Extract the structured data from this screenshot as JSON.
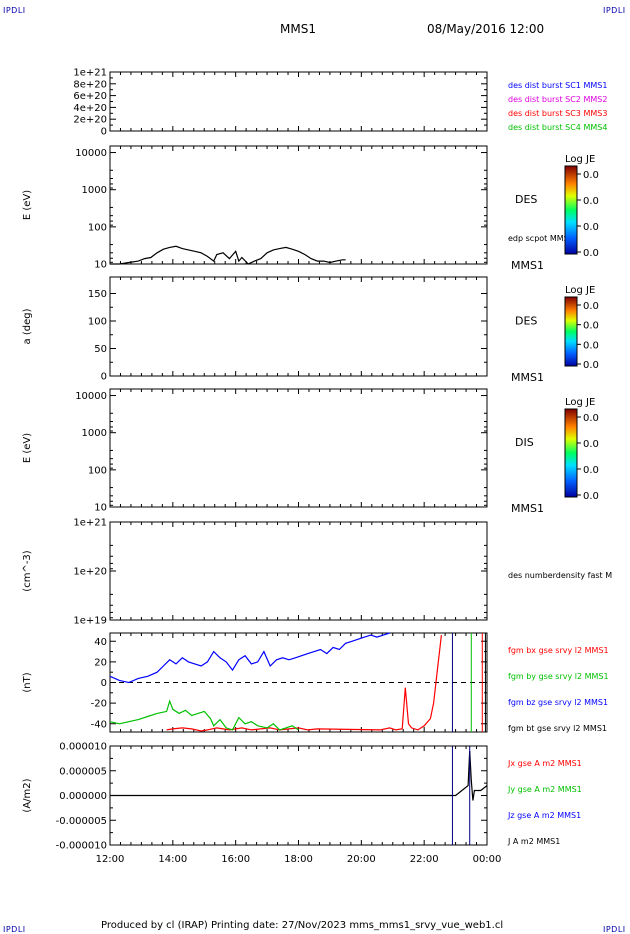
{
  "corner_label": "IPDLI",
  "header": {
    "spacecraft": "MMS1",
    "datetime": "08/May/2016 12:00"
  },
  "footer": {
    "text": "Produced by cl (IRAP)   Printing date: 27/Nov/2023   mms_mms1_srvy_vue_web1.cl"
  },
  "colors": {
    "c1": "#0000ff",
    "c2": "#e000e0",
    "c3": "#ff0000",
    "c4": "#00c000",
    "black": "#000000"
  },
  "chart_data": [
    {
      "type": "line",
      "id": "panel1",
      "yticks": [
        "1e+21",
        "8e+20",
        "6e+20",
        "4e+20",
        "2e+20",
        "0"
      ],
      "ylim": [
        0,
        1e+21
      ],
      "zero_line": "dashed",
      "labels": [
        {
          "text": "des dist burst SC1 MMS1",
          "color": "#0000ff"
        },
        {
          "text": "des dist burst SC2 MMS2",
          "color": "#e000e0"
        },
        {
          "text": "des dist burst SC3 MMS3",
          "color": "#ff0000"
        },
        {
          "text": "des dist burst SC4 MMS4",
          "color": "#00c000"
        }
      ]
    },
    {
      "type": "line",
      "id": "panel2",
      "ylabel": "E (eV)",
      "scale": "log",
      "ylim": [
        10,
        15000
      ],
      "yticks": [
        "10000",
        "1000",
        "100",
        "10"
      ],
      "right_label": "DES",
      "bottom_right": "MMS1",
      "series_label": "edp scpot MMS1",
      "colorbar": {
        "title": "Log JE",
        "ticks": [
          "0.0",
          "0.0",
          "0.0",
          "0.0"
        ]
      },
      "series": [
        {
          "name": "edp scpot MMS1",
          "color": "#000000",
          "x": [
            12.0,
            12.3,
            12.6,
            12.9,
            13.1,
            13.3,
            13.5,
            13.7,
            13.9,
            14.1,
            14.3,
            14.5,
            14.7,
            14.9,
            15.1,
            15.3,
            15.4,
            15.6,
            15.8,
            16.0,
            16.1,
            16.2,
            16.4,
            16.6,
            16.8,
            17.0,
            17.2,
            17.4,
            17.6,
            17.8,
            18.0,
            18.2,
            18.4,
            18.6,
            18.8,
            19.0,
            19.2,
            19.4,
            19.5
          ],
          "y": [
            10,
            10,
            11,
            12,
            14,
            15,
            20,
            25,
            28,
            30,
            26,
            24,
            22,
            20,
            16,
            12,
            18,
            20,
            14,
            22,
            12,
            15,
            10,
            12,
            14,
            20,
            24,
            26,
            28,
            25,
            22,
            18,
            14,
            12,
            12,
            11,
            12,
            13,
            13
          ]
        }
      ]
    },
    {
      "type": "heatmap",
      "id": "panel3",
      "ylabel": "a (deg)",
      "ylim": [
        0,
        180
      ],
      "yticks": [
        "150",
        "100",
        "50",
        "0"
      ],
      "right_label": "DES",
      "bottom_right": "MMS1",
      "colorbar": {
        "title": "Log JE",
        "ticks": [
          "0.0",
          "0.0",
          "0.0",
          "0.0"
        ]
      }
    },
    {
      "type": "heatmap",
      "id": "panel4",
      "ylabel": "E (eV)",
      "scale": "log",
      "ylim": [
        10,
        15000
      ],
      "yticks": [
        "10000",
        "1000",
        "100",
        "10"
      ],
      "right_label": "DIS",
      "bottom_right": "MMS1",
      "colorbar": {
        "title": "Log JE",
        "ticks": [
          "0.0",
          "0.0",
          "0.0",
          "0.0"
        ]
      }
    },
    {
      "type": "line",
      "id": "panel5",
      "ylabel": "(cm^-3)",
      "scale": "log",
      "ylim": [
        1e+19,
        1e+21
      ],
      "yticks": [
        "1e+21",
        "1e+20",
        "1e+19"
      ],
      "series_label": "des numberdensity fast M"
    },
    {
      "type": "line",
      "id": "panel6",
      "ylabel": "(nT)",
      "ylim": [
        -48,
        48
      ],
      "yticks": [
        "40",
        "20",
        "0",
        "-20",
        "-40"
      ],
      "zero_line": "dashed",
      "series": [
        {
          "name": "fgm bx gse srvy l2 MMS1",
          "color": "#ff0000",
          "x": [
            13.8,
            14.0,
            14.3,
            14.6,
            14.9,
            15.1,
            15.4,
            15.6,
            15.8,
            16.0,
            16.2,
            16.5,
            16.8,
            17.1,
            17.4,
            17.7,
            18.0,
            18.3,
            18.6,
            20.6,
            20.9,
            21.1,
            21.3,
            21.4,
            21.5,
            21.6,
            21.8,
            22.0,
            22.2,
            22.3,
            22.45,
            22.55
          ],
          "y": [
            -46,
            -45,
            -44,
            -45,
            -47,
            -46,
            -44,
            -45,
            -46,
            -45,
            -44,
            -46,
            -45,
            -44,
            -46,
            -45,
            -44,
            -46,
            -45,
            -46,
            -44,
            -46,
            -45,
            -5,
            -40,
            -44,
            -46,
            -42,
            -35,
            -20,
            20,
            46
          ]
        },
        {
          "name": "fgm by gse srvy l2 MMS1",
          "color": "#00c000",
          "x": [
            12.0,
            12.3,
            12.6,
            12.9,
            13.2,
            13.5,
            13.8,
            13.9,
            14.0,
            14.2,
            14.4,
            14.6,
            14.8,
            15.0,
            15.2,
            15.3,
            15.5,
            15.7,
            15.9,
            16.1,
            16.3,
            16.5,
            16.7,
            17.0,
            17.2,
            17.4,
            17.6,
            17.8,
            18.0
          ],
          "y": [
            -38,
            -40,
            -38,
            -36,
            -33,
            -30,
            -28,
            -18,
            -26,
            -30,
            -27,
            -32,
            -30,
            -28,
            -35,
            -42,
            -36,
            -44,
            -46,
            -34,
            -40,
            -38,
            -42,
            -44,
            -40,
            -46,
            -44,
            -42,
            -46
          ]
        },
        {
          "name": "fgm bz gse srvy l2 MMS1",
          "color": "#0000ff",
          "x": [
            12.0,
            12.3,
            12.6,
            12.9,
            13.2,
            13.5,
            13.7,
            13.9,
            14.1,
            14.3,
            14.5,
            14.7,
            14.9,
            15.1,
            15.3,
            15.5,
            15.7,
            15.9,
            16.1,
            16.3,
            16.5,
            16.7,
            16.9,
            17.1,
            17.3,
            17.5,
            17.7,
            17.9,
            18.1,
            18.3,
            18.5,
            18.7,
            18.9,
            19.1,
            19.3,
            19.5,
            19.7,
            19.9,
            20.1,
            20.3,
            20.5,
            20.7,
            20.9
          ],
          "y": [
            6,
            2,
            0,
            4,
            6,
            10,
            16,
            22,
            18,
            24,
            20,
            18,
            16,
            20,
            30,
            24,
            20,
            12,
            22,
            26,
            18,
            20,
            30,
            16,
            22,
            24,
            22,
            24,
            26,
            28,
            30,
            32,
            28,
            34,
            32,
            38,
            40,
            42,
            44,
            46,
            44,
            46,
            48
          ]
        },
        {
          "name": "fgm bt gse srvy l2 MMS1",
          "color": "#000000",
          "x": [],
          "y": []
        }
      ],
      "vlines": [
        {
          "x": 22.9,
          "color": "#000080"
        },
        {
          "x": 23.5,
          "color": "#00c000"
        },
        {
          "x": 23.85,
          "color": "#ff0000"
        },
        {
          "x": 23.95,
          "color": "#000000"
        }
      ]
    },
    {
      "type": "line",
      "id": "panel7",
      "ylabel": "(A/m2)",
      "ylim": [
        -1e-05,
        1e-05
      ],
      "yticks": [
        "0.000010",
        "0.000005",
        "0.000000",
        "-0.000005",
        "-0.000010"
      ],
      "xticks": [
        "12:00",
        "14:00",
        "16:00",
        "18:00",
        "20:00",
        "22:00",
        "00:00"
      ],
      "xlim": [
        12,
        24
      ],
      "series": [
        {
          "name": "Jx gse A m2 MMS1",
          "color": "#ff0000",
          "x": [],
          "y": []
        },
        {
          "name": "Jy gse A m2 MMS1",
          "color": "#00c000",
          "x": [],
          "y": []
        },
        {
          "name": "Jz gse A m2 MMS1",
          "color": "#0000ff",
          "x": [],
          "y": []
        },
        {
          "name": "J A m2 MMS1",
          "color": "#000000",
          "x": [
            12.0,
            13.0,
            14.0,
            15.0,
            16.0,
            17.0,
            18.0,
            19.0,
            20.0,
            21.0,
            22.0,
            22.5,
            23.0,
            23.2,
            23.4,
            23.45,
            23.5,
            23.55,
            23.6,
            23.8,
            24.0
          ],
          "y": [
            0,
            0,
            0,
            0,
            0,
            0,
            0,
            0,
            0,
            0,
            0,
            0,
            0,
            1e-06,
            2e-06,
            9e-06,
            3e-06,
            -1e-06,
            1e-06,
            1e-06,
            2e-06
          ]
        }
      ],
      "vlines": [
        {
          "x": 22.9,
          "color": "#000080"
        },
        {
          "x": 23.45,
          "color": "#000080"
        }
      ]
    }
  ]
}
